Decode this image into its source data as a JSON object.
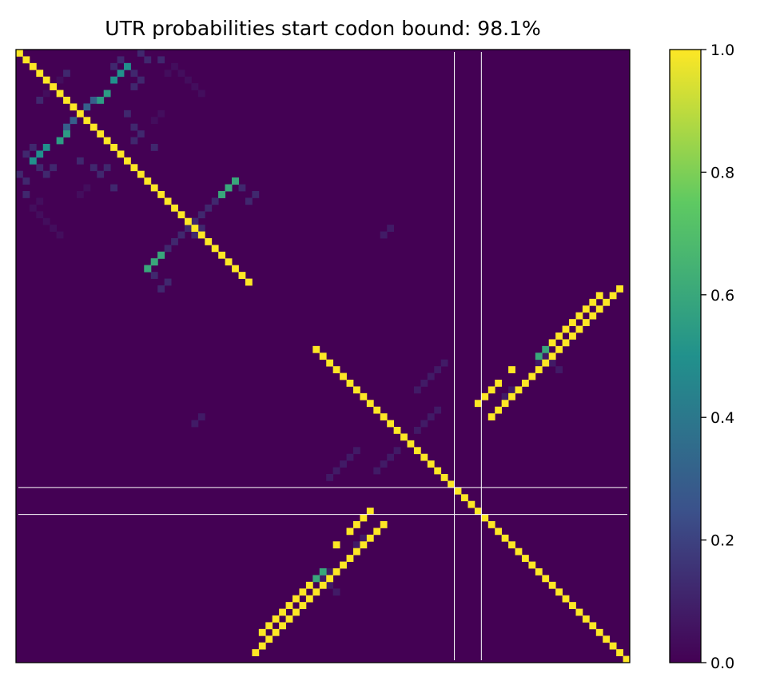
{
  "chart_data": {
    "type": "heatmap",
    "title": "UTR probabilities start codon bound: 98.1%",
    "xlabel": "",
    "ylabel": "",
    "size": 91,
    "grid": false,
    "colormap": "viridis",
    "colors": [
      "#440154",
      "#3b528b",
      "#21918c",
      "#5ec962",
      "#fde725"
    ],
    "colorbar": {
      "range": [
        0,
        1
      ],
      "placement": "right",
      "ticks": [
        "0.0",
        "0.2",
        "0.4",
        "0.6",
        "0.8",
        "1.0"
      ]
    },
    "highlight_lines": {
      "index": [
        65,
        69
      ],
      "color": "#ffffff"
    },
    "default_value": 0.0,
    "diagonal_ranges": [
      {
        "start": 0,
        "end": 34,
        "value": 1.0
      },
      {
        "start": 44,
        "end": 90,
        "value": 1.0
      }
    ],
    "antidiagonal_arms": [
      {
        "name": "hairpin-1a",
        "points": [
          [
            2,
            16
          ],
          [
            3,
            15
          ],
          [
            4,
            14
          ]
        ],
        "value": 0.5
      },
      {
        "name": "hairpin-1b",
        "points": [
          [
            7,
            11
          ],
          [
            8,
            10
          ]
        ],
        "value": 0.3
      },
      {
        "name": "hairpin-2",
        "points": [
          [
            12,
            7
          ],
          [
            13,
            6
          ]
        ],
        "value": 0.55
      },
      {
        "name": "hairpin-3",
        "points": [
          [
            19,
            32
          ],
          [
            20,
            31
          ],
          [
            21,
            30
          ]
        ],
        "value": 0.62
      },
      {
        "name": "hairpin-4",
        "points": [
          [
            30,
            21
          ],
          [
            31,
            20
          ],
          [
            32,
            19
          ]
        ],
        "value": 0.6
      },
      {
        "name": "hairpin-5",
        "points": [
          [
            36,
            86
          ],
          [
            37,
            85
          ],
          [
            38,
            84
          ],
          [
            39,
            83
          ],
          [
            40,
            82
          ],
          [
            41,
            81
          ],
          [
            42,
            80
          ],
          [
            43,
            79
          ]
        ],
        "value": 1.0
      },
      {
        "name": "hairpin-5b",
        "points": [
          [
            44,
            78
          ],
          [
            45,
            77
          ]
        ],
        "value": 0.6
      },
      {
        "name": "hairpin-5c",
        "points": [
          [
            47,
            73
          ],
          [
            49,
            71
          ],
          [
            50,
            70
          ],
          [
            51,
            69
          ],
          [
            52,
            68
          ]
        ],
        "value": 1.0
      },
      {
        "name": "hairpin-6",
        "points": [
          [
            70,
            54
          ],
          [
            71,
            53
          ],
          [
            72,
            52
          ],
          [
            73,
            51
          ],
          [
            74,
            50
          ],
          [
            75,
            49
          ],
          [
            76,
            48
          ],
          [
            77,
            47
          ],
          [
            78,
            46
          ],
          [
            79,
            45
          ],
          [
            80,
            44
          ],
          [
            81,
            43
          ],
          [
            82,
            42
          ],
          [
            83,
            41
          ],
          [
            84,
            40
          ],
          [
            85,
            39
          ],
          [
            86,
            38
          ],
          [
            87,
            37
          ],
          [
            88,
            36
          ],
          [
            89,
            35
          ]
        ],
        "value": 1.0
      }
    ],
    "sparse_cells": [
      {
        "cells": [
          [
            3,
            17
          ],
          [
            5,
            17
          ],
          [
            4,
            18
          ],
          [
            1,
            21
          ],
          [
            7,
            3
          ],
          [
            9,
            16
          ],
          [
            11,
            17
          ],
          [
            14,
            2
          ],
          [
            15,
            1
          ],
          [
            16,
            2
          ],
          [
            18,
            0
          ],
          [
            19,
            1
          ],
          [
            17,
            13
          ],
          [
            18,
            12
          ],
          [
            20,
            14
          ],
          [
            22,
            29
          ],
          [
            23,
            28
          ],
          [
            24,
            27
          ],
          [
            25,
            26
          ],
          [
            26,
            25
          ],
          [
            27,
            26
          ],
          [
            34,
            22
          ],
          [
            35,
            21
          ],
          [
            33,
            20
          ]
        ],
        "value": 0.12
      },
      {
        "cells": [
          [
            26,
            55
          ],
          [
            27,
            54
          ],
          [
            46,
            63
          ],
          [
            47,
            62
          ],
          [
            48,
            61
          ],
          [
            49,
            60
          ],
          [
            50,
            59
          ],
          [
            59,
            56
          ],
          [
            60,
            55
          ],
          [
            61,
            54
          ],
          [
            62,
            53
          ],
          [
            77,
            46
          ],
          [
            78,
            45
          ],
          [
            79,
            46
          ],
          [
            80,
            47
          ],
          [
            72,
            51
          ],
          [
            73,
            50
          ]
        ],
        "value": 0.08
      },
      {
        "cells": [
          [
            6,
            4
          ],
          [
            20,
            10
          ],
          [
            21,
            9
          ],
          [
            22,
            3
          ],
          [
            23,
            2
          ],
          [
            24,
            3
          ],
          [
            25,
            4
          ],
          [
            26,
            5
          ],
          [
            27,
            6
          ]
        ],
        "value": 0.04
      }
    ]
  }
}
